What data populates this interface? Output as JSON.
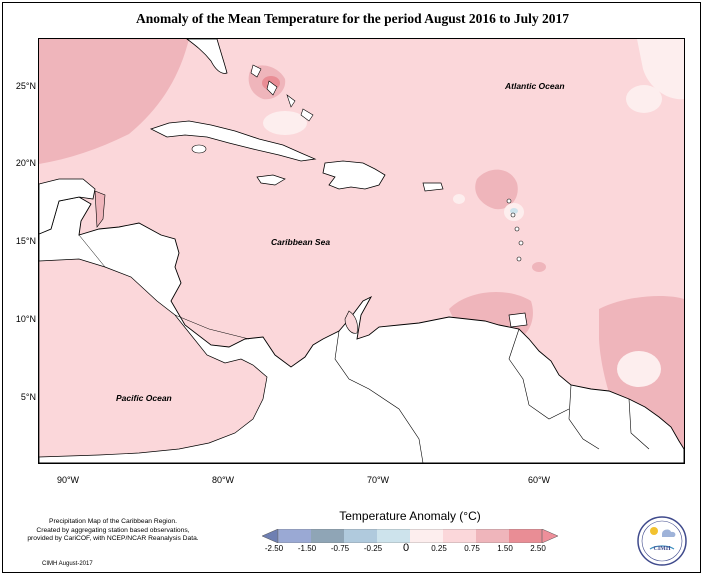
{
  "map": {
    "title": "Anomaly of the Mean Temperature for the period August 2016 to July 2017",
    "lat_labels": [
      "25°N",
      "20°N",
      "15°N",
      "10°N",
      "5°N"
    ],
    "lon_labels": [
      "90°W",
      "80°W",
      "70°W",
      "60°W"
    ],
    "ocean_labels": {
      "atlantic": "Atlantic Ocean",
      "caribbean": "Caribbean Sea",
      "pacific": "Pacific Ocean"
    },
    "colors": {
      "ocean_base": "#fbd7da",
      "warm_patch": "#efb5bb",
      "hot_spot": "#e98d95",
      "cool_patch": "#fdeeee",
      "land": "#ffffff",
      "coastline": "#000000"
    }
  },
  "legend": {
    "title": "Temperature Anomaly (°C)",
    "ticks": [
      "-2.50",
      "-1.50",
      "-0.75",
      "-0.25",
      "0",
      "0.25",
      "0.75",
      "1.50",
      "2.50"
    ],
    "colors": [
      "#6e7fb2",
      "#9aa9d4",
      "#8fa5b6",
      "#b0cadd",
      "#cde3ec",
      "#fdeeee",
      "#fbd7da",
      "#efb5bb",
      "#e98d95",
      "#ee8f9a"
    ]
  },
  "credits": {
    "lines": [
      "Precipitation Map of the Caribbean Region.",
      "Created by aggregating station based observations,",
      "provided by CariCOF, with NCEP/NCAR Reanalysis Data."
    ],
    "date_note": "CIMH August-2017"
  },
  "logo": {
    "text": "CIMH",
    "icon": "cimh-logo-icon"
  }
}
